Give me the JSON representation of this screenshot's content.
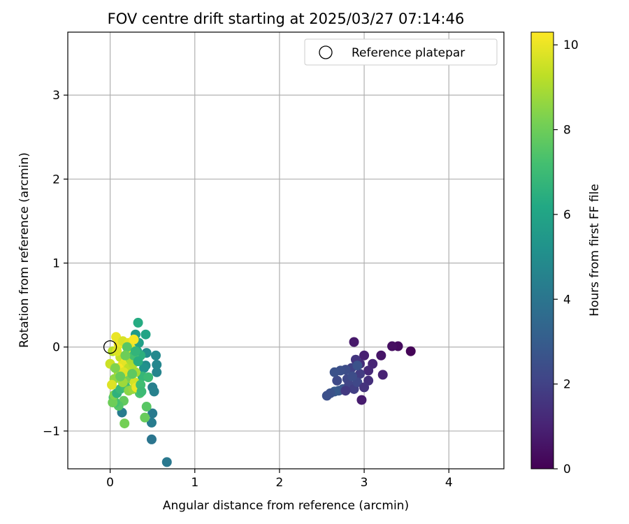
{
  "chart_data": {
    "type": "scatter",
    "title": "FOV centre drift starting at 2025/03/27 07:14:46",
    "xlabel": "Angular distance from reference (arcmin)",
    "ylabel": "Rotation from reference (arcmin)",
    "xlim": [
      -0.5,
      4.65
    ],
    "ylim": [
      -1.45,
      3.75
    ],
    "xticks": [
      0,
      1,
      2,
      3,
      4
    ],
    "xtick_labels": [
      "0",
      "1",
      "2",
      "3",
      "4"
    ],
    "yticks": [
      -1,
      0,
      1,
      2,
      3
    ],
    "ytick_labels": [
      "−1",
      "0",
      "1",
      "2",
      "3"
    ],
    "grid": true,
    "legend": {
      "placement": "top-right",
      "entries": [
        {
          "label": "Reference platepar",
          "marker": "open-circle"
        }
      ]
    },
    "reference_point": {
      "x": 0.0,
      "y": 0.0
    },
    "colorbar": {
      "label": "Hours from first FF file",
      "colormap": "viridis",
      "range": [
        0,
        10.3
      ],
      "ticks": [
        0,
        2,
        4,
        6,
        8,
        10
      ],
      "tick_labels": [
        "0",
        "2",
        "4",
        "6",
        "8",
        "10"
      ]
    },
    "points": [
      {
        "x": 3.55,
        "y": -0.05,
        "c": 0.1
      },
      {
        "x": 3.4,
        "y": 0.01,
        "c": 0.3
      },
      {
        "x": 3.33,
        "y": 0.01,
        "c": 0.4
      },
      {
        "x": 3.2,
        "y": -0.1,
        "c": 0.6
      },
      {
        "x": 3.22,
        "y": -0.33,
        "c": 1.0
      },
      {
        "x": 3.1,
        "y": -0.2,
        "c": 1.1
      },
      {
        "x": 3.05,
        "y": -0.28,
        "c": 1.2
      },
      {
        "x": 3.0,
        "y": -0.1,
        "c": 0.9
      },
      {
        "x": 2.97,
        "y": -0.63,
        "c": 0.8
      },
      {
        "x": 2.88,
        "y": 0.06,
        "c": 0.7
      },
      {
        "x": 2.95,
        "y": -0.2,
        "c": 1.3
      },
      {
        "x": 2.9,
        "y": -0.15,
        "c": 1.6
      },
      {
        "x": 3.05,
        "y": -0.4,
        "c": 1.4
      },
      {
        "x": 2.95,
        "y": -0.32,
        "c": 1.8
      },
      {
        "x": 2.85,
        "y": -0.25,
        "c": 2.0
      },
      {
        "x": 2.8,
        "y": -0.38,
        "c": 2.2
      },
      {
        "x": 2.78,
        "y": -0.27,
        "c": 2.4
      },
      {
        "x": 2.72,
        "y": -0.28,
        "c": 2.5
      },
      {
        "x": 2.68,
        "y": -0.4,
        "c": 2.3
      },
      {
        "x": 2.65,
        "y": -0.3,
        "c": 2.6
      },
      {
        "x": 2.75,
        "y": -0.5,
        "c": 2.7
      },
      {
        "x": 2.7,
        "y": -0.52,
        "c": 2.8
      },
      {
        "x": 2.65,
        "y": -0.53,
        "c": 2.9
      },
      {
        "x": 2.6,
        "y": -0.55,
        "c": 2.6
      },
      {
        "x": 2.56,
        "y": -0.58,
        "c": 2.5
      },
      {
        "x": 2.82,
        "y": -0.45,
        "c": 2.1
      },
      {
        "x": 2.88,
        "y": -0.5,
        "c": 1.9
      },
      {
        "x": 2.92,
        "y": -0.42,
        "c": 2.2
      },
      {
        "x": 2.78,
        "y": -0.52,
        "c": 1.7
      },
      {
        "x": 3.0,
        "y": -0.48,
        "c": 1.5
      },
      {
        "x": 2.86,
        "y": -0.35,
        "c": 2.4
      },
      {
        "x": 2.92,
        "y": -0.22,
        "c": 2.6
      },
      {
        "x": 0.67,
        "y": -1.37,
        "c": 4.1
      },
      {
        "x": 0.49,
        "y": -1.1,
        "c": 4.0
      },
      {
        "x": 0.49,
        "y": -0.9,
        "c": 4.3
      },
      {
        "x": 0.5,
        "y": -0.79,
        "c": 4.2
      },
      {
        "x": 0.5,
        "y": -0.48,
        "c": 4.4
      },
      {
        "x": 0.52,
        "y": -0.53,
        "c": 4.5
      },
      {
        "x": 0.55,
        "y": -0.3,
        "c": 4.6
      },
      {
        "x": 0.55,
        "y": -0.21,
        "c": 4.7
      },
      {
        "x": 0.54,
        "y": -0.1,
        "c": 4.8
      },
      {
        "x": 0.43,
        "y": -0.07,
        "c": 5.0
      },
      {
        "x": 0.42,
        "y": -0.22,
        "c": 4.9
      },
      {
        "x": 0.4,
        "y": -0.25,
        "c": 5.2
      },
      {
        "x": 0.3,
        "y": 0.15,
        "c": 5.5
      },
      {
        "x": 0.42,
        "y": 0.15,
        "c": 6.0
      },
      {
        "x": 0.33,
        "y": 0.29,
        "c": 6.3
      },
      {
        "x": 0.34,
        "y": 0.05,
        "c": 5.8
      },
      {
        "x": 0.32,
        "y": -0.05,
        "c": 6.1
      },
      {
        "x": 0.36,
        "y": -0.1,
        "c": 6.5
      },
      {
        "x": 0.38,
        "y": -0.35,
        "c": 6.8
      },
      {
        "x": 0.45,
        "y": -0.36,
        "c": 7.0
      },
      {
        "x": 0.35,
        "y": -0.55,
        "c": 7.3
      },
      {
        "x": 0.43,
        "y": -0.71,
        "c": 7.6
      },
      {
        "x": 0.41,
        "y": -0.84,
        "c": 7.9
      },
      {
        "x": 0.17,
        "y": -0.91,
        "c": 8.1
      },
      {
        "x": 0.14,
        "y": -0.78,
        "c": 4.3
      },
      {
        "x": 0.16,
        "y": -0.64,
        "c": 7.8
      },
      {
        "x": 0.1,
        "y": -0.7,
        "c": 7.5
      },
      {
        "x": 0.06,
        "y": -0.66,
        "c": 7.2
      },
      {
        "x": 0.04,
        "y": -0.6,
        "c": 7.4
      },
      {
        "x": 0.03,
        "y": -0.66,
        "c": 8.0
      },
      {
        "x": 0.05,
        "y": -0.57,
        "c": 8.3
      },
      {
        "x": 0.08,
        "y": -0.55,
        "c": 6.6
      },
      {
        "x": 0.12,
        "y": -0.5,
        "c": 6.9
      },
      {
        "x": 0.18,
        "y": -0.47,
        "c": 7.1
      },
      {
        "x": 0.22,
        "y": -0.52,
        "c": 8.5
      },
      {
        "x": 0.27,
        "y": -0.5,
        "c": 8.7
      },
      {
        "x": 0.25,
        "y": -0.38,
        "c": 8.4
      },
      {
        "x": 0.2,
        "y": -0.35,
        "c": 8.2
      },
      {
        "x": 0.15,
        "y": -0.42,
        "c": 8.8
      },
      {
        "x": 0.1,
        "y": -0.3,
        "c": 9.0
      },
      {
        "x": 0.05,
        "y": -0.38,
        "c": 8.6
      },
      {
        "x": 0.02,
        "y": -0.45,
        "c": 9.8
      },
      {
        "x": 0.0,
        "y": -0.2,
        "c": 9.5
      },
      {
        "x": 0.03,
        "y": -0.05,
        "c": 9.2
      },
      {
        "x": 0.07,
        "y": 0.12,
        "c": 10.0
      },
      {
        "x": 0.1,
        "y": 0.03,
        "c": 10.1
      },
      {
        "x": 0.15,
        "y": 0.07,
        "c": 9.7
      },
      {
        "x": 0.22,
        "y": 0.05,
        "c": 9.9
      },
      {
        "x": 0.28,
        "y": 0.09,
        "c": 10.2
      },
      {
        "x": 0.25,
        "y": -0.02,
        "c": 10.0
      },
      {
        "x": 0.2,
        "y": -0.08,
        "c": 9.6
      },
      {
        "x": 0.12,
        "y": -0.12,
        "c": 9.4
      },
      {
        "x": 0.08,
        "y": -0.05,
        "c": 9.8
      },
      {
        "x": 0.18,
        "y": -0.18,
        "c": 10.1
      },
      {
        "x": 0.14,
        "y": -0.22,
        "c": 9.9
      },
      {
        "x": 0.1,
        "y": -0.25,
        "c": 10.2
      },
      {
        "x": 0.22,
        "y": -0.25,
        "c": 9.3
      },
      {
        "x": 0.27,
        "y": -0.2,
        "c": 9.1
      },
      {
        "x": 0.3,
        "y": -0.3,
        "c": 8.9
      },
      {
        "x": 0.29,
        "y": -0.42,
        "c": 9.6
      },
      {
        "x": 0.31,
        "y": -0.48,
        "c": 10.0
      },
      {
        "x": 0.24,
        "y": -0.15,
        "c": 9.0
      },
      {
        "x": 0.16,
        "y": -0.3,
        "c": 9.8
      },
      {
        "x": 0.2,
        "y": 0.0,
        "c": 7.6
      },
      {
        "x": 0.28,
        "y": -0.1,
        "c": 7.2
      },
      {
        "x": 0.33,
        "y": -0.17,
        "c": 6.4
      },
      {
        "x": 0.3,
        "y": -0.05,
        "c": 6.7
      },
      {
        "x": 0.26,
        "y": -0.32,
        "c": 7.7
      },
      {
        "x": 0.36,
        "y": -0.45,
        "c": 7.1
      },
      {
        "x": 0.37,
        "y": -0.53,
        "c": 7.0
      },
      {
        "x": 0.12,
        "y": -0.35,
        "c": 7.9
      },
      {
        "x": 0.06,
        "y": -0.25,
        "c": 8.3
      },
      {
        "x": 0.18,
        "y": -0.1,
        "c": 8.0
      }
    ]
  }
}
